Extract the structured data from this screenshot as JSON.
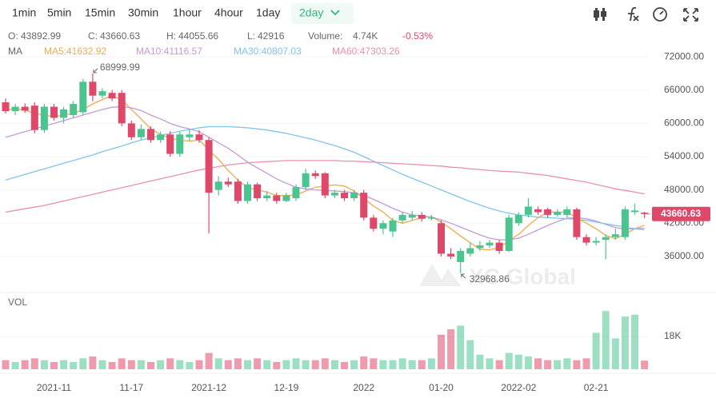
{
  "toolbar": {
    "intervals": [
      "1min",
      "5min",
      "15min",
      "30min",
      "1hour",
      "4hour",
      "1day",
      "2day"
    ],
    "active": 7
  },
  "header": {
    "labels": [
      "O:",
      "C:",
      "H:",
      "L:",
      "Volume:"
    ],
    "volume": "4.74K",
    "change": "-0.53%",
    "ma": "MA"
  },
  "chart_data": {
    "type": "candlestick",
    "categories": [
      null,
      null,
      null,
      null,
      null,
      "2021-11",
      null,
      null,
      null,
      null,
      null,
      null,
      null,
      "11-17",
      null,
      null,
      null,
      null,
      null,
      null,
      null,
      "2021-12",
      null,
      null,
      null,
      null,
      null,
      null,
      null,
      "12-19",
      null,
      null,
      null,
      null,
      null,
      null,
      null,
      "2022",
      null,
      null,
      null,
      null,
      null,
      null,
      null,
      "01-20",
      null,
      null,
      null,
      null,
      null,
      null,
      null,
      "2022-02",
      null,
      null,
      null,
      null,
      null,
      null,
      null,
      "02-21",
      null,
      null,
      null,
      null,
      null
    ],
    "open": [
      63800,
      62200,
      63000,
      63200,
      58800,
      63000,
      61000,
      61500,
      62000,
      67500,
      65000,
      65500,
      65500,
      60000,
      57500,
      59000,
      57000,
      58000,
      54500,
      57500,
      58000,
      57000,
      48000,
      49500,
      49500,
      46000,
      49000,
      46500,
      47000,
      46000,
      46500,
      48500,
      51000,
      51000,
      47000,
      47500,
      46500,
      47500,
      43000,
      41000,
      40500,
      42500,
      43000,
      43500,
      42800,
      42000,
      36500,
      35000,
      36500,
      37500,
      38000,
      38500,
      37000,
      42000,
      43500,
      44500,
      44500,
      43500,
      43500,
      44500,
      39500,
      38500,
      39000,
      39500,
      39500,
      44000,
      43892.99
    ],
    "high": [
      64500,
      63500,
      63600,
      63800,
      63500,
      63500,
      63000,
      64000,
      68000,
      68999.99,
      66300,
      66000,
      66000,
      60500,
      59800,
      59500,
      58500,
      58600,
      58500,
      59000,
      58800,
      57500,
      50500,
      50200,
      50000,
      49500,
      49300,
      47800,
      47500,
      47500,
      49000,
      51800,
      51500,
      51200,
      48000,
      48000,
      48000,
      48000,
      43500,
      42500,
      43000,
      44000,
      44200,
      44000,
      43500,
      42500,
      37500,
      37500,
      38500,
      38800,
      39000,
      39000,
      43500,
      44000,
      46500,
      45000,
      44800,
      44500,
      45000,
      44800,
      40000,
      39500,
      40000,
      41000,
      45000,
      45500,
      44055.66
    ],
    "low": [
      61800,
      61500,
      61900,
      58200,
      58300,
      60500,
      60000,
      61000,
      61500,
      64000,
      64500,
      64000,
      59500,
      57000,
      57000,
      56500,
      56500,
      54000,
      54000,
      56800,
      56500,
      40200,
      47000,
      48500,
      45500,
      45500,
      46000,
      46000,
      45500,
      45800,
      46000,
      48000,
      50000,
      46500,
      46500,
      46000,
      46000,
      42500,
      40500,
      40000,
      39500,
      42000,
      42500,
      42300,
      42500,
      36000,
      35500,
      32968.86,
      36000,
      37000,
      37500,
      36500,
      36800,
      41500,
      43000,
      43500,
      43000,
      43200,
      43000,
      39000,
      38000,
      38000,
      35500,
      39000,
      39000,
      43500,
      42916
    ],
    "close": [
      62200,
      63000,
      62300,
      58800,
      63000,
      61000,
      62500,
      63500,
      67500,
      65000,
      65800,
      64500,
      60000,
      57500,
      59000,
      57000,
      58000,
      54500,
      58000,
      58000,
      57000,
      47500,
      49500,
      49000,
      46000,
      49000,
      46500,
      47000,
      46000,
      47000,
      48500,
      51000,
      50500,
      47000,
      47500,
      46500,
      47500,
      43000,
      41000,
      42000,
      42500,
      43500,
      43500,
      42800,
      43000,
      36500,
      36000,
      37000,
      37500,
      38000,
      38500,
      37000,
      43000,
      43500,
      45000,
      44000,
      43500,
      44000,
      44500,
      39500,
      38500,
      38800,
      39500,
      40000,
      44500,
      44300,
      43660.63
    ],
    "up_color": "#4cc48f",
    "down_color": "#e0486a",
    "ylim": [
      29650,
      77200
    ],
    "yticks": [
      {
        "value": 72000,
        "label": "72000.00"
      },
      {
        "value": 66000,
        "label": "66000.00"
      },
      {
        "value": 60000,
        "label": "60000.00"
      },
      {
        "value": 54000,
        "label": "54000.00"
      },
      {
        "value": 48000,
        "label": "48000.00"
      },
      {
        "value": 42000,
        "label": "42000.00"
      },
      {
        "value": 36000,
        "label": "36000.00"
      }
    ],
    "grid": true,
    "series": [
      {
        "name": "MA5:41632.92",
        "color": "#f0a94e",
        "values": [
          62500,
          62600,
          62400,
          61800,
          61500,
          61200,
          61500,
          61800,
          62500,
          63500,
          64300,
          65000,
          64200,
          62500,
          60800,
          59000,
          58000,
          57300,
          57000,
          56800,
          57000,
          55200,
          53500,
          51500,
          49800,
          48400,
          48000,
          47600,
          47000,
          47000,
          47100,
          47800,
          48500,
          48700,
          48900,
          48700,
          47800,
          46500,
          45100,
          44000,
          42500,
          42000,
          42500,
          43000,
          43200,
          42200,
          41000,
          39700,
          38500,
          37300,
          37200,
          37600,
          38800,
          40000,
          41600,
          43000,
          44000,
          44000,
          44000,
          43000,
          42000,
          41000,
          39800,
          39200,
          40000,
          41000,
          41632.92
        ]
      },
      {
        "name": "MA10:41116.57",
        "color": "#c49ad8",
        "values": [
          57500,
          58000,
          58500,
          59000,
          59500,
          60000,
          60500,
          61000,
          61500,
          62000,
          62500,
          62900,
          63000,
          62800,
          62300,
          61500,
          60800,
          60000,
          59400,
          59000,
          58500,
          57500,
          56500,
          55500,
          54300,
          53000,
          52000,
          51000,
          50000,
          49200,
          48500,
          48200,
          48000,
          47900,
          47800,
          47700,
          47500,
          47000,
          46300,
          45500,
          44700,
          44000,
          43500,
          43300,
          43100,
          42600,
          42000,
          41300,
          40600,
          39900,
          39300,
          39000,
          39000,
          39300,
          40000,
          40800,
          41600,
          42300,
          42900,
          43000,
          42800,
          42400,
          41800,
          41200,
          40900,
          41000,
          41116.57
        ]
      },
      {
        "name": "MA30:40807.03",
        "color": "#7fc4ea",
        "values": [
          49800,
          50300,
          50800,
          51300,
          51800,
          52300,
          52800,
          53300,
          53800,
          54300,
          54900,
          55400,
          55900,
          56500,
          57000,
          57400,
          57800,
          58200,
          58600,
          58900,
          59200,
          59400,
          59400,
          59400,
          59300,
          59200,
          59000,
          58800,
          58500,
          58200,
          57800,
          57400,
          57000,
          56500,
          56000,
          55400,
          54800,
          54000,
          53200,
          52400,
          51600,
          50800,
          50100,
          49400,
          48700,
          48000,
          47300,
          46600,
          45900,
          45300,
          44700,
          44200,
          43800,
          43500,
          43300,
          43100,
          43000,
          42900,
          42800,
          42700,
          42500,
          42200,
          41900,
          41600,
          41300,
          41000,
          40807.03
        ]
      },
      {
        "name": "MA60:47303.26",
        "color": "#e98fb0",
        "values": [
          44000,
          44300,
          44600,
          44900,
          45200,
          45600,
          46000,
          46400,
          46800,
          47200,
          47600,
          48000,
          48400,
          48800,
          49200,
          49600,
          50000,
          50400,
          50800,
          51200,
          51600,
          51900,
          52200,
          52500,
          52700,
          52900,
          53000,
          53100,
          53200,
          53300,
          53300,
          53300,
          53300,
          53300,
          53300,
          53200,
          53200,
          53100,
          53000,
          52900,
          52800,
          52700,
          52600,
          52500,
          52400,
          52300,
          52100,
          52000,
          51800,
          51700,
          51500,
          51400,
          51300,
          51200,
          51000,
          50800,
          50600,
          50300,
          50000,
          49700,
          49400,
          49000,
          48600,
          48200,
          47900,
          47600,
          47303.26
        ]
      }
    ],
    "volume": {
      "label": "VOL",
      "values": [
        5,
        4,
        5,
        6,
        5,
        4,
        5,
        4,
        6,
        7,
        5,
        4,
        6,
        5,
        5,
        4,
        5,
        6,
        5,
        4,
        5,
        9,
        6,
        5,
        6,
        5,
        6,
        5,
        4,
        5,
        6,
        5,
        5,
        6,
        5,
        4,
        5,
        7,
        6,
        5,
        5,
        6,
        5,
        5,
        6,
        19,
        22,
        24,
        16,
        8,
        6,
        5,
        9,
        8,
        7,
        6,
        5,
        5,
        6,
        5,
        6,
        20,
        32,
        17,
        29,
        30,
        4.74
      ],
      "ylim": [
        0,
        40
      ],
      "yticks": [
        {
          "value": 18,
          "label": "18K"
        }
      ]
    },
    "watermark": "XC Global"
  }
}
